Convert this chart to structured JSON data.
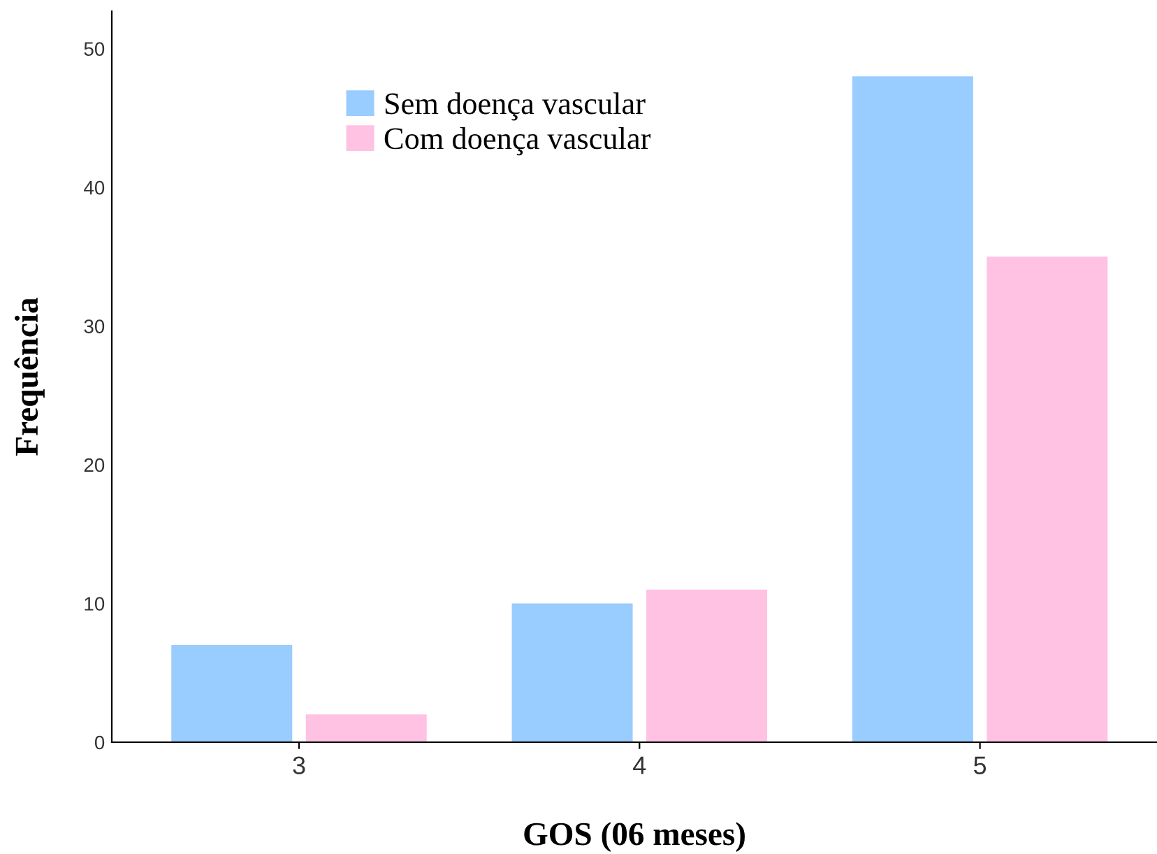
{
  "chart_data": {
    "type": "bar",
    "xlabel": "GOS (06 meses)",
    "ylabel": "Frequência",
    "categories": [
      "3",
      "4",
      "5"
    ],
    "series": [
      {
        "name": "Sem doença vascular",
        "color": "#99ccff",
        "values": [
          7,
          10,
          48
        ]
      },
      {
        "name": "Com doença vascular",
        "color": "#ffc2e2",
        "values": [
          2,
          11,
          35
        ]
      }
    ],
    "ylim": [
      0,
      52.7
    ],
    "yticks": [
      0,
      10,
      20,
      30,
      40,
      50
    ],
    "grid": false,
    "legend": "top"
  }
}
